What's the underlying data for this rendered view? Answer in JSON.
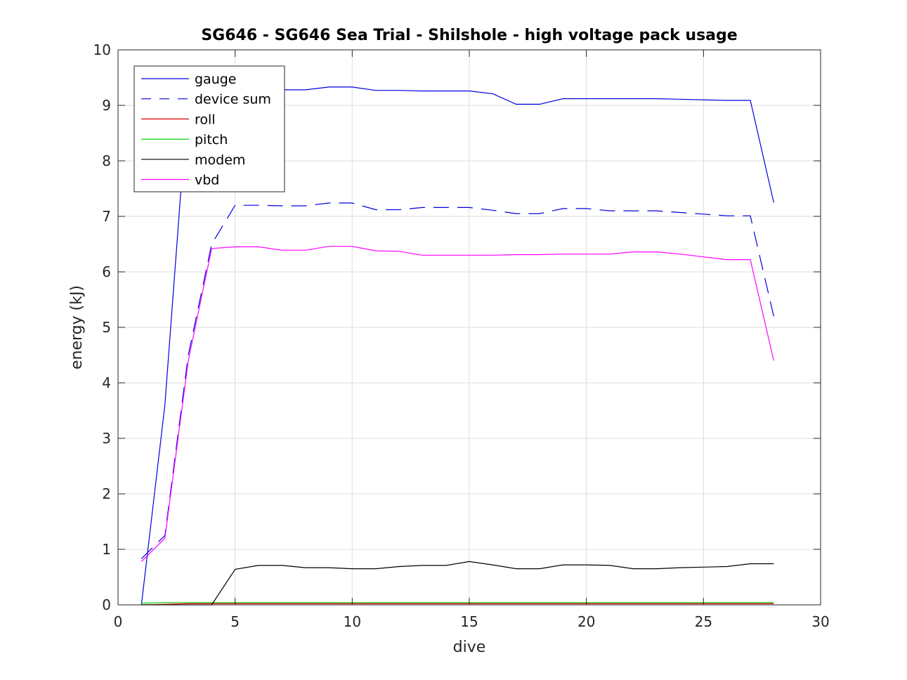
{
  "chart_data": {
    "type": "line",
    "title": "SG646 - SG646 Sea Trial - Shilshole - high voltage pack usage",
    "xlabel": "dive",
    "ylabel": "energy (kJ)",
    "xlim": [
      0,
      30
    ],
    "ylim": [
      0,
      10
    ],
    "xticks": [
      0,
      5,
      10,
      15,
      20,
      25,
      30
    ],
    "yticks": [
      0,
      1,
      2,
      3,
      4,
      5,
      6,
      7,
      8,
      9,
      10
    ],
    "grid": true,
    "legend_position": "top-left",
    "x": [
      1,
      2,
      3,
      4,
      5,
      6,
      7,
      8,
      9,
      10,
      11,
      12,
      13,
      14,
      15,
      16,
      17,
      18,
      19,
      20,
      21,
      22,
      23,
      24,
      25,
      26,
      27,
      28
    ],
    "series": [
      {
        "name": "gauge",
        "color": "#0000e0",
        "dash": "solid",
        "values": [
          0.0,
          3.6,
          9.25,
          9.28,
          9.28,
          9.28,
          9.28,
          9.28,
          9.33,
          9.33,
          9.27,
          9.27,
          9.26,
          9.26,
          9.26,
          9.21,
          9.02,
          9.02,
          9.12,
          9.12,
          9.12,
          9.12,
          9.12,
          9.11,
          9.1,
          9.09,
          9.09,
          7.25
        ]
      },
      {
        "name": "device sum",
        "color": "#0000e0",
        "dash": "dashed",
        "values": [
          0.83,
          1.25,
          4.5,
          6.5,
          7.2,
          7.2,
          7.19,
          7.19,
          7.24,
          7.24,
          7.12,
          7.12,
          7.16,
          7.16,
          7.16,
          7.11,
          7.05,
          7.05,
          7.14,
          7.14,
          7.1,
          7.1,
          7.1,
          7.07,
          7.04,
          7.01,
          7.01,
          5.2
        ]
      },
      {
        "name": "roll",
        "color": "#e00000",
        "dash": "solid",
        "values": [
          0.0,
          0.01,
          0.02,
          0.02,
          0.02,
          0.02,
          0.02,
          0.02,
          0.02,
          0.02,
          0.02,
          0.02,
          0.02,
          0.02,
          0.02,
          0.02,
          0.02,
          0.02,
          0.02,
          0.02,
          0.02,
          0.02,
          0.02,
          0.02,
          0.02,
          0.02,
          0.02,
          0.02
        ]
      },
      {
        "name": "pitch",
        "color": "#00d000",
        "dash": "solid",
        "values": [
          0.03,
          0.04,
          0.04,
          0.04,
          0.04,
          0.04,
          0.04,
          0.04,
          0.04,
          0.04,
          0.04,
          0.04,
          0.04,
          0.04,
          0.04,
          0.04,
          0.04,
          0.04,
          0.04,
          0.04,
          0.04,
          0.04,
          0.04,
          0.04,
          0.04,
          0.04,
          0.04,
          0.04
        ]
      },
      {
        "name": "modem",
        "color": "#000000",
        "dash": "solid",
        "values": [
          0,
          0,
          0,
          0,
          0.64,
          0.71,
          0.71,
          0.67,
          0.67,
          0.65,
          0.65,
          0.69,
          0.71,
          0.71,
          0.78,
          0.72,
          0.65,
          0.65,
          0.72,
          0.72,
          0.71,
          0.65,
          0.65,
          0.67,
          0.68,
          0.69,
          0.74,
          0.74
        ]
      },
      {
        "name": "vbd",
        "color": "#ff00ff",
        "dash": "solid",
        "values": [
          0.78,
          1.2,
          4.4,
          6.42,
          6.45,
          6.45,
          6.39,
          6.39,
          6.46,
          6.46,
          6.38,
          6.37,
          6.3,
          6.3,
          6.3,
          6.3,
          6.31,
          6.31,
          6.32,
          6.32,
          6.32,
          6.36,
          6.36,
          6.32,
          6.27,
          6.22,
          6.22,
          4.4
        ]
      }
    ]
  }
}
